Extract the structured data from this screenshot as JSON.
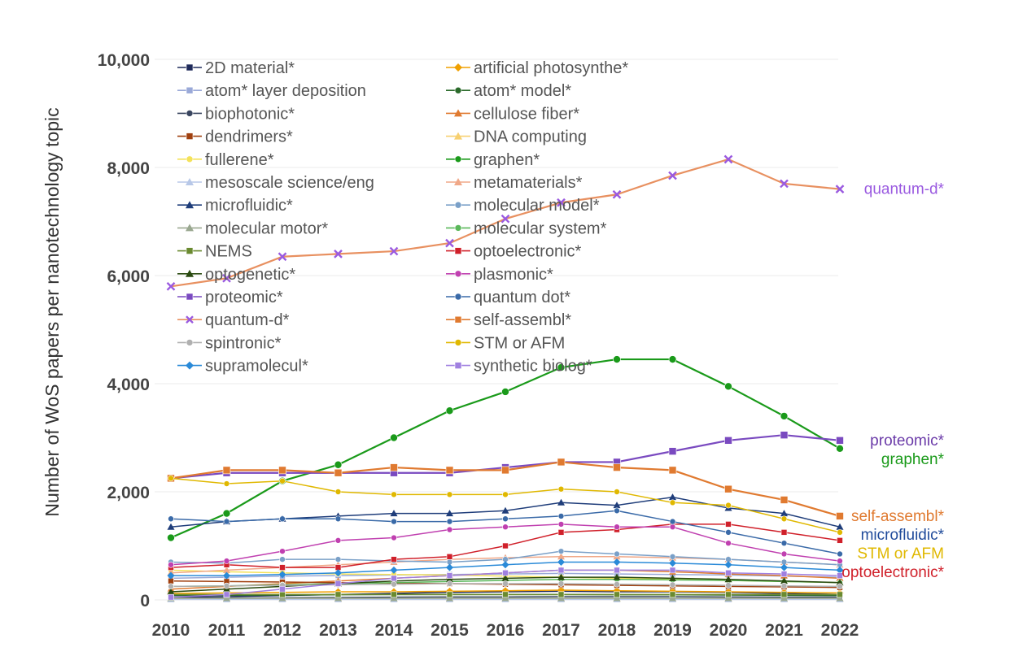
{
  "chart_data": {
    "type": "line",
    "ylabel": "Number of WoS papers per nanotechnology topic",
    "ylim": [
      0,
      10000
    ],
    "y_ticks": [
      "0",
      "2,000",
      "4,000",
      "6,000",
      "8,000",
      "10,000"
    ],
    "y_tick_values": [
      0,
      2000,
      4000,
      6000,
      8000,
      10000
    ],
    "x": [
      "2010",
      "2011",
      "2012",
      "2013",
      "2014",
      "2015",
      "2016",
      "2017",
      "2018",
      "2019",
      "2020",
      "2021",
      "2022"
    ],
    "grid": "horizontal",
    "legend_position": "top-left",
    "series": [
      {
        "name": "2D material*",
        "color": "#1f2a5a",
        "marker": "square",
        "values": [
          50,
          60,
          80,
          100,
          120,
          140,
          150,
          160,
          150,
          150,
          140,
          120,
          100
        ]
      },
      {
        "name": "artificial photosynthe*",
        "color": "#f0a000",
        "marker": "diamond",
        "values": [
          120,
          130,
          140,
          150,
          150,
          160,
          170,
          180,
          170,
          160,
          150,
          140,
          130
        ]
      },
      {
        "name": "atom* layer deposition",
        "color": "#9aa9d8",
        "marker": "square",
        "values": [
          400,
          420,
          440,
          450,
          460,
          470,
          480,
          490,
          480,
          470,
          460,
          440,
          420
        ]
      },
      {
        "name": "atom* model*",
        "color": "#2a6a2a",
        "marker": "circle",
        "values": [
          80,
          85,
          90,
          95,
          100,
          100,
          100,
          100,
          95,
          95,
          90,
          85,
          80
        ]
      },
      {
        "name": "biophotonic*",
        "color": "#3a4660",
        "marker": "circle",
        "values": [
          30,
          35,
          40,
          45,
          50,
          55,
          55,
          60,
          60,
          60,
          55,
          50,
          50
        ]
      },
      {
        "name": "cellulose fiber*",
        "color": "#e07a30",
        "marker": "triangle",
        "values": [
          200,
          250,
          300,
          350,
          400,
          450,
          500,
          550,
          550,
          520,
          480,
          450,
          400
        ]
      },
      {
        "name": "dendrimers*",
        "color": "#a0400f",
        "marker": "square",
        "values": [
          350,
          340,
          330,
          320,
          310,
          300,
          290,
          280,
          270,
          260,
          250,
          240,
          230
        ]
      },
      {
        "name": "DNA computing",
        "color": "#f7d070",
        "marker": "triangle",
        "values": [
          20,
          20,
          20,
          20,
          20,
          20,
          20,
          20,
          20,
          20,
          20,
          20,
          20
        ]
      },
      {
        "name": "fullerene*",
        "color": "#f4e25a",
        "marker": "circle",
        "values": [
          550,
          520,
          500,
          480,
          470,
          460,
          440,
          420,
          400,
          380,
          360,
          340,
          320
        ]
      },
      {
        "name": "graphen*",
        "color": "#1a9a1a",
        "marker": "circle",
        "values": [
          1150,
          1600,
          2200,
          2500,
          3000,
          3500,
          3850,
          4300,
          4450,
          4450,
          3950,
          3400,
          2800
        ]
      },
      {
        "name": "mesoscale science/eng",
        "color": "#b8c8e8",
        "marker": "triangle",
        "values": [
          10,
          10,
          10,
          10,
          10,
          10,
          10,
          10,
          10,
          10,
          10,
          10,
          10
        ]
      },
      {
        "name": "metamaterials*",
        "color": "#f0a888",
        "marker": "triangle",
        "values": [
          500,
          550,
          600,
          650,
          700,
          750,
          780,
          800,
          800,
          780,
          750,
          700,
          650
        ]
      },
      {
        "name": "microfluidic*",
        "color": "#1f3d7a",
        "marker": "triangle",
        "values": [
          1350,
          1450,
          1500,
          1550,
          1600,
          1600,
          1650,
          1800,
          1750,
          1900,
          1700,
          1600,
          1350
        ]
      },
      {
        "name": "molecular model*",
        "color": "#7aa0c8",
        "marker": "circle",
        "values": [
          700,
          680,
          750,
          750,
          720,
          700,
          750,
          900,
          850,
          800,
          750,
          700,
          650
        ]
      },
      {
        "name": "molecular motor*",
        "color": "#9aa890",
        "marker": "triangle",
        "values": [
          30,
          30,
          30,
          30,
          30,
          30,
          30,
          30,
          30,
          30,
          30,
          30,
          30
        ]
      },
      {
        "name": "molecular system*",
        "color": "#5ab85a",
        "marker": "circle",
        "values": [
          250,
          260,
          280,
          300,
          320,
          340,
          360,
          380,
          380,
          370,
          360,
          340,
          320
        ]
      },
      {
        "name": "NEMS",
        "color": "#6a8a30",
        "marker": "square",
        "values": [
          100,
          100,
          100,
          100,
          100,
          100,
          100,
          100,
          100,
          100,
          100,
          100,
          100
        ]
      },
      {
        "name": "optoelectronic*",
        "color": "#d0202a",
        "marker": "square",
        "values": [
          600,
          650,
          600,
          600,
          750,
          800,
          1000,
          1250,
          1300,
          1400,
          1400,
          1250,
          1100
        ]
      },
      {
        "name": "optogenetic*",
        "color": "#2a4a10",
        "marker": "triangle",
        "values": [
          150,
          200,
          250,
          300,
          350,
          380,
          400,
          420,
          420,
          400,
          380,
          350,
          320
        ]
      },
      {
        "name": "plasmonic*",
        "color": "#c040b0",
        "marker": "circle",
        "values": [
          650,
          720,
          900,
          1100,
          1150,
          1300,
          1350,
          1400,
          1350,
          1350,
          1050,
          850,
          720
        ]
      },
      {
        "name": "proteomic*",
        "color": "#7a4ac0",
        "marker": "square",
        "values": [
          2250,
          2350,
          2350,
          2350,
          2350,
          2350,
          2450,
          2550,
          2550,
          2750,
          2950,
          3050,
          2950
        ]
      },
      {
        "name": "quantum dot*",
        "color": "#3a6aa8",
        "marker": "circle",
        "values": [
          1500,
          1450,
          1500,
          1500,
          1450,
          1450,
          1500,
          1550,
          1650,
          1450,
          1250,
          1050,
          850
        ]
      },
      {
        "name": "quantum-d*",
        "color": "#e89060",
        "marker": "cross",
        "values": [
          5800,
          5950,
          6350,
          6400,
          6450,
          6600,
          7050,
          7350,
          7500,
          7850,
          8150,
          7700,
          7600
        ]
      },
      {
        "name": "self-assembl*",
        "color": "#e07a30",
        "marker": "square",
        "values": [
          2250,
          2400,
          2400,
          2350,
          2450,
          2400,
          2400,
          2550,
          2450,
          2400,
          2050,
          1850,
          1550
        ]
      },
      {
        "name": "spintronic*",
        "color": "#b0b0b0",
        "marker": "circle",
        "values": [
          250,
          260,
          270,
          280,
          290,
          300,
          300,
          300,
          290,
          280,
          270,
          260,
          250
        ]
      },
      {
        "name": "STM or AFM",
        "color": "#e0b800",
        "marker": "circle",
        "values": [
          2250,
          2150,
          2200,
          2000,
          1950,
          1950,
          1950,
          2050,
          2000,
          1800,
          1750,
          1500,
          1250
        ]
      },
      {
        "name": "supramolecul*",
        "color": "#2a8ad8",
        "marker": "diamond",
        "values": [
          450,
          450,
          470,
          500,
          550,
          600,
          650,
          700,
          700,
          680,
          650,
          600,
          550
        ]
      },
      {
        "name": "synthetic biolog*",
        "color": "#a080e0",
        "marker": "square",
        "values": [
          50,
          100,
          200,
          300,
          400,
          450,
          500,
          550,
          550,
          550,
          500,
          480,
          450
        ]
      }
    ],
    "end_labels": [
      {
        "text": "quantum-d*",
        "color": "#9a5ae0",
        "series": "quantum-d*"
      },
      {
        "text": "proteomic*",
        "color": "#6a3aa8",
        "series": "proteomic*"
      },
      {
        "text": "graphen*",
        "color": "#1a9a1a",
        "series": "graphen*"
      },
      {
        "text": "self-assembl*",
        "color": "#e07a30",
        "series": "self-assembl*"
      },
      {
        "text": "microfluidic*",
        "color": "#1f4a9a",
        "series": "microfluidic*"
      },
      {
        "text": "STM or AFM",
        "color": "#e0b800",
        "series": "STM or AFM"
      },
      {
        "text": "optoelectronic*",
        "color": "#d0202a",
        "series": "optoelectronic*"
      }
    ]
  }
}
